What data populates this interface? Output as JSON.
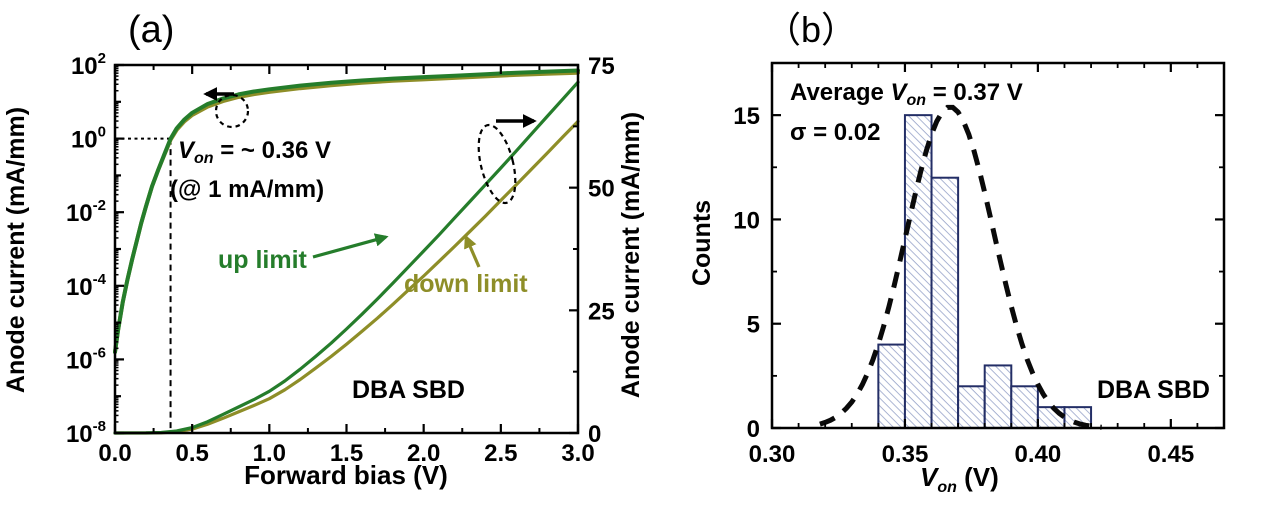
{
  "figure": {
    "panel_a": {
      "label": "(a)",
      "xlabel": "Forward bias (V)",
      "ylabel_left": "Anode current (mA/mm)",
      "ylabel_right": "Anode current (mA/mm)",
      "von": {
        "var": "V",
        "sub": "on",
        "line1_suffix": " = ~ 0.36 V",
        "line2": "(@ 1 mA/mm)"
      },
      "up_label": "up limit",
      "down_label": "down limit",
      "device_label": "DBA SBD"
    },
    "panel_b": {
      "label": "（b）",
      "ylabel": "Counts",
      "xlabel": {
        "var": "V",
        "sub": "on",
        "suffix": " (V)"
      },
      "avg": {
        "prefix": "Average ",
        "var": "V",
        "sub": "on",
        "suffix": " = 0.37 V"
      },
      "sigma_text": "σ = 0.02",
      "device_label": "DBA SBD"
    }
  },
  "colors": {
    "up_green": "#257d2b",
    "down_olive": "#8e8e28",
    "black": "#000000",
    "hist_edge": "#232e66",
    "hist_hatch": "#97a3c9",
    "gauss": "#0a0a0a"
  },
  "chart_data": [
    {
      "type": "line",
      "panel": "a",
      "title": "(a)",
      "xlabel": "Forward bias (V)",
      "ylabel_left": "Anode current (mA/mm) [log scale]",
      "ylabel_right": "Anode current (mA/mm) [linear]",
      "xlim": [
        0,
        3
      ],
      "x_ticks": {
        "values": [
          0,
          0.5,
          1,
          1.5,
          2,
          2.5,
          3
        ],
        "labels": [
          "0.0",
          "0.5",
          "1.0",
          "1.5",
          "2.0",
          "2.5",
          "3.0"
        ],
        "minor_step": 0.25
      },
      "left_log10_lim": [
        -8,
        2
      ],
      "left_tick_exponents": [
        2,
        0,
        -2,
        -4,
        -6,
        -8
      ],
      "right_lim": [
        0,
        75
      ],
      "right_ticks": {
        "values": [
          0,
          25,
          50,
          75
        ],
        "labels": [
          "0",
          "25",
          "50",
          "75"
        ],
        "minor_step": 12.5
      },
      "von_guide": {
        "x": 0.36,
        "log10_y": 0
      },
      "series": [
        {
          "name": "down limit (log axis)",
          "axis": "left_log",
          "color_key": "down_olive",
          "x": [
            0,
            0.02,
            0.05,
            0.08,
            0.11,
            0.14,
            0.17,
            0.2,
            0.24,
            0.28,
            0.32,
            0.36,
            0.4,
            0.45,
            0.5,
            0.6,
            0.7,
            0.8,
            0.9,
            1,
            1.2,
            1.4,
            1.6,
            1.8,
            2,
            2.2,
            2.4,
            2.6,
            2.8,
            3
          ],
          "y": [
            -5.8,
            -5.2,
            -4.45,
            -3.85,
            -3.3,
            -2.8,
            -2.3,
            -1.85,
            -1.3,
            -0.85,
            -0.44,
            -0.03,
            0.24,
            0.47,
            0.64,
            0.87,
            1.02,
            1.13,
            1.21,
            1.27,
            1.37,
            1.45,
            1.52,
            1.57,
            1.61,
            1.65,
            1.69,
            1.73,
            1.76,
            1.79
          ]
        },
        {
          "name": "up limit (log axis)",
          "axis": "left_log",
          "color_key": "up_green",
          "x": [
            0,
            0.02,
            0.05,
            0.08,
            0.11,
            0.14,
            0.17,
            0.2,
            0.24,
            0.28,
            0.32,
            0.36,
            0.4,
            0.45,
            0.5,
            0.6,
            0.7,
            0.8,
            0.9,
            1,
            1.2,
            1.4,
            1.6,
            1.8,
            2,
            2.2,
            2.4,
            2.6,
            2.8,
            3
          ],
          "y": [
            -5.8,
            -5.2,
            -4.45,
            -3.85,
            -3.3,
            -2.8,
            -2.3,
            -1.85,
            -1.3,
            -0.85,
            -0.42,
            0,
            0.28,
            0.52,
            0.7,
            0.94,
            1.09,
            1.2,
            1.28,
            1.34,
            1.44,
            1.52,
            1.58,
            1.63,
            1.67,
            1.71,
            1.75,
            1.79,
            1.82,
            1.85
          ]
        },
        {
          "name": "down limit (linear axis)",
          "axis": "right",
          "color_key": "down_olive",
          "x": [
            0,
            0.2,
            0.3,
            0.4,
            0.5,
            0.6,
            0.7,
            0.8,
            0.9,
            1,
            1.1,
            1.2,
            1.3,
            1.4,
            1.5,
            1.6,
            1.7,
            1.8,
            1.9,
            2,
            2.1,
            2.2,
            2.3,
            2.4,
            2.5,
            2.6,
            2.7,
            2.8,
            2.9,
            3
          ],
          "y": [
            0,
            0.01,
            0.05,
            0.25,
            0.8,
            1.8,
            3,
            4.3,
            5.6,
            7,
            8.8,
            10.9,
            13.2,
            15.6,
            18.1,
            20.7,
            23.4,
            26.2,
            29.1,
            32,
            35,
            38,
            41.1,
            44.2,
            47.4,
            50.6,
            53.8,
            57,
            60.3,
            63.5
          ]
        },
        {
          "name": "up limit (linear axis)",
          "axis": "right",
          "color_key": "up_green",
          "x": [
            0,
            0.2,
            0.3,
            0.4,
            0.5,
            0.6,
            0.7,
            0.8,
            0.9,
            1,
            1.1,
            1.2,
            1.3,
            1.4,
            1.5,
            1.6,
            1.7,
            1.8,
            1.9,
            2,
            2.1,
            2.2,
            2.3,
            2.4,
            2.5,
            2.6,
            2.7,
            2.8,
            2.9,
            3
          ],
          "y": [
            0,
            0.02,
            0.1,
            0.4,
            1.1,
            2.3,
            3.8,
            5.3,
            6.8,
            8.5,
            10.6,
            13,
            15.6,
            18.3,
            21.2,
            24.2,
            27.3,
            30.5,
            33.8,
            37.1,
            40.4,
            43.8,
            47.2,
            50.6,
            54,
            57.5,
            61,
            64.5,
            68,
            71.5
          ]
        }
      ]
    },
    {
      "type": "bar",
      "panel": "b",
      "title": "（b）",
      "xlabel": "Von (V)",
      "ylabel": "Counts",
      "xlim": [
        0.3,
        0.47
      ],
      "x_ticks": {
        "values": [
          0.3,
          0.35,
          0.4,
          0.45
        ],
        "labels": [
          "0.30",
          "0.35",
          "0.40",
          "0.45"
        ],
        "minor_step": 0.01
      },
      "ylim": [
        0,
        17.5
      ],
      "y_ticks": {
        "values": [
          0,
          5,
          10,
          15
        ],
        "labels": [
          "0",
          "5",
          "10",
          "15"
        ],
        "minor_step": 2.5
      },
      "bins": {
        "start": 0.34,
        "width": 0.01,
        "edges": [
          0.34,
          0.35,
          0.36,
          0.37,
          0.38,
          0.39,
          0.4,
          0.41,
          0.42
        ],
        "counts": [
          4,
          15,
          12,
          2,
          3,
          2,
          1,
          1
        ]
      },
      "gauss_fit": {
        "mean": 0.367,
        "sigma": 0.0165,
        "amplitude": 15.4,
        "x_range": [
          0.318,
          0.426
        ],
        "style": "dashed",
        "annotation_mean": "0.37",
        "annotation_sigma": "0.02"
      }
    }
  ]
}
